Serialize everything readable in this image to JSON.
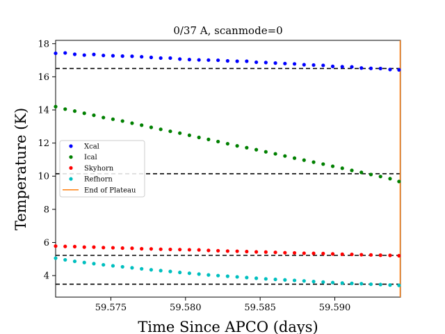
{
  "chart_data": {
    "type": "scatter",
    "title": "0/37 A, scanmode=0",
    "xlabel": "Time Since APCO (days)",
    "ylabel": "Temperature (K)",
    "xlim": [
      59.5713,
      59.5944
    ],
    "ylim": [
      2.7,
      18.2
    ],
    "x_ticks": [
      "59.575",
      "59.580",
      "59.585",
      "59.590"
    ],
    "y_ticks": [
      "4",
      "6",
      "8",
      "10",
      "12",
      "14",
      "16",
      "18"
    ],
    "grid": false,
    "legend_position": "center-left",
    "x": [
      59.5713,
      59.57194,
      59.57258,
      59.57322,
      59.57386,
      59.5745,
      59.57514,
      59.57578,
      59.57642,
      59.57706,
      59.5777,
      59.57834,
      59.57898,
      59.57962,
      59.58026,
      59.5809,
      59.58154,
      59.58218,
      59.58282,
      59.58346,
      59.5841,
      59.58474,
      59.58538,
      59.58602,
      59.58666,
      59.5873,
      59.58794,
      59.58858,
      59.58922,
      59.58986,
      59.5905,
      59.59114,
      59.59178,
      59.59242,
      59.59306,
      59.5937,
      59.5943
    ],
    "series": [
      {
        "name": "Xcal",
        "color": "#0000ff",
        "values": [
          17.42,
          17.44,
          17.36,
          17.31,
          17.35,
          17.29,
          17.27,
          17.25,
          17.24,
          17.21,
          17.17,
          17.13,
          17.13,
          17.07,
          17.04,
          17.02,
          17.01,
          17.0,
          16.96,
          16.94,
          16.94,
          16.88,
          16.86,
          16.83,
          16.8,
          16.78,
          16.73,
          16.71,
          16.69,
          16.63,
          16.61,
          16.6,
          16.53,
          16.51,
          16.5,
          16.44,
          16.42
        ],
        "hline": 16.5
      },
      {
        "name": "Ical",
        "color": "#008000",
        "values": [
          14.2,
          14.05,
          13.93,
          13.8,
          13.68,
          13.54,
          13.44,
          13.33,
          13.2,
          13.08,
          12.95,
          12.83,
          12.71,
          12.6,
          12.47,
          12.34,
          12.22,
          12.09,
          11.96,
          11.83,
          11.72,
          11.6,
          11.47,
          11.35,
          11.22,
          11.09,
          10.97,
          10.85,
          10.73,
          10.6,
          10.48,
          10.35,
          10.23,
          10.1,
          9.98,
          9.85,
          9.68
        ],
        "hline": 10.15
      },
      {
        "name": "Skyhorn",
        "color": "#ff0000",
        "values": [
          5.78,
          5.76,
          5.75,
          5.72,
          5.72,
          5.69,
          5.68,
          5.66,
          5.65,
          5.62,
          5.61,
          5.59,
          5.58,
          5.57,
          5.56,
          5.55,
          5.52,
          5.5,
          5.48,
          5.47,
          5.45,
          5.43,
          5.42,
          5.4,
          5.38,
          5.37,
          5.35,
          5.34,
          5.33,
          5.31,
          5.29,
          5.28,
          5.26,
          5.25,
          5.23,
          5.22,
          5.2
        ],
        "hline": 5.22
      },
      {
        "name": "Refhorn",
        "color": "#00bfbf",
        "values": [
          5.05,
          4.95,
          4.86,
          4.79,
          4.72,
          4.65,
          4.59,
          4.53,
          4.47,
          4.41,
          4.35,
          4.3,
          4.25,
          4.19,
          4.14,
          4.09,
          4.04,
          4.0,
          3.96,
          3.92,
          3.88,
          3.84,
          3.8,
          3.77,
          3.74,
          3.71,
          3.68,
          3.64,
          3.61,
          3.58,
          3.55,
          3.53,
          3.51,
          3.48,
          3.46,
          3.43,
          3.41
        ],
        "hline": 3.48
      }
    ],
    "end_of_plateau": {
      "name": "End of Plateau",
      "color": "#ff7f0e",
      "x": 59.5944
    }
  }
}
